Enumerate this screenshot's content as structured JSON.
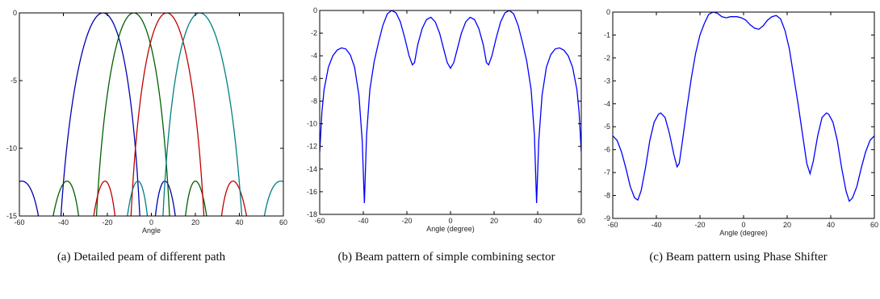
{
  "chart_data": [
    {
      "type": "line",
      "title": "",
      "xlabel": "Angle",
      "ylabel": "",
      "xlim": [
        -60,
        60
      ],
      "ylim": [
        -15,
        0
      ],
      "xticks": [
        -60,
        -40,
        -20,
        0,
        20,
        40,
        60
      ],
      "yticks": [
        -15,
        -10,
        -5,
        0
      ],
      "grid": false,
      "series": [
        {
          "color": "#0000b0",
          "steer": -22
        },
        {
          "color": "#006000",
          "steer": -8
        },
        {
          "color": "#c00000",
          "steer": 7
        },
        {
          "color": "#008080",
          "steer": 22
        }
      ]
    },
    {
      "type": "line",
      "title": "",
      "xlabel": "Angle (degree)",
      "ylabel": "",
      "xlim": [
        -60,
        60
      ],
      "ylim": [
        -18,
        0
      ],
      "xticks": [
        -60,
        -40,
        -20,
        0,
        20,
        40,
        60
      ],
      "yticks": [
        -18,
        -16,
        -14,
        -12,
        -10,
        -8,
        -6,
        -4,
        -2,
        0
      ],
      "grid": false,
      "series": [
        {
          "color": "#0000ff",
          "points": [
            [
              -60,
              -12.5
            ],
            [
              -59,
              -9
            ],
            [
              -58,
              -7
            ],
            [
              -56,
              -5
            ],
            [
              -54,
              -4
            ],
            [
              -52,
              -3.5
            ],
            [
              -50,
              -3.3
            ],
            [
              -48,
              -3.4
            ],
            [
              -46,
              -3.9
            ],
            [
              -44,
              -5
            ],
            [
              -42,
              -7.5
            ],
            [
              -40.5,
              -11.5
            ],
            [
              -39.5,
              -17
            ],
            [
              -38.5,
              -11
            ],
            [
              -37,
              -7
            ],
            [
              -35,
              -4.5
            ],
            [
              -33,
              -2.8
            ],
            [
              -31,
              -1.3
            ],
            [
              -29,
              -0.3
            ],
            [
              -27,
              0
            ],
            [
              -25,
              -0.2
            ],
            [
              -23,
              -1
            ],
            [
              -21,
              -2.4
            ],
            [
              -19,
              -4
            ],
            [
              -17.5,
              -4.8
            ],
            [
              -16.5,
              -4.6
            ],
            [
              -15,
              -3
            ],
            [
              -13,
              -1.6
            ],
            [
              -11,
              -0.8
            ],
            [
              -9,
              -0.6
            ],
            [
              -7,
              -1
            ],
            [
              -5,
              -2
            ],
            [
              -3,
              -3.5
            ],
            [
              -1.5,
              -4.6
            ],
            [
              0,
              -5.1
            ],
            [
              1.5,
              -4.6
            ],
            [
              3,
              -3.5
            ],
            [
              5,
              -2
            ],
            [
              7,
              -1
            ],
            [
              9,
              -0.6
            ],
            [
              11,
              -0.8
            ],
            [
              13,
              -1.6
            ],
            [
              15,
              -3
            ],
            [
              16.5,
              -4.6
            ],
            [
              17.5,
              -4.8
            ],
            [
              19,
              -4
            ],
            [
              21,
              -2.4
            ],
            [
              23,
              -1
            ],
            [
              25,
              -0.2
            ],
            [
              27,
              0
            ],
            [
              29,
              -0.3
            ],
            [
              31,
              -1.3
            ],
            [
              33,
              -2.8
            ],
            [
              35,
              -4.5
            ],
            [
              37,
              -7
            ],
            [
              38.5,
              -11
            ],
            [
              39.5,
              -17
            ],
            [
              40.5,
              -11.5
            ],
            [
              42,
              -7.5
            ],
            [
              44,
              -5
            ],
            [
              46,
              -3.9
            ],
            [
              48,
              -3.4
            ],
            [
              50,
              -3.3
            ],
            [
              52,
              -3.5
            ],
            [
              54,
              -4
            ],
            [
              56,
              -5
            ],
            [
              58,
              -7
            ],
            [
              59,
              -9
            ],
            [
              60,
              -12.5
            ]
          ]
        }
      ]
    },
    {
      "type": "line",
      "title": "",
      "xlabel": "Angle (degree)",
      "ylabel": "",
      "xlim": [
        -60,
        60
      ],
      "ylim": [
        -9,
        0
      ],
      "xticks": [
        -60,
        -40,
        -20,
        0,
        20,
        40,
        60
      ],
      "yticks": [
        -9,
        -8,
        -7,
        -6,
        -5,
        -4,
        -3,
        -2,
        -1,
        0
      ],
      "grid": false,
      "series": [
        {
          "color": "#0000ff",
          "points": [
            [
              -60,
              -5.4
            ],
            [
              -58,
              -5.6
            ],
            [
              -56,
              -6.1
            ],
            [
              -54,
              -6.8
            ],
            [
              -52,
              -7.6
            ],
            [
              -50,
              -8.1
            ],
            [
              -48.5,
              -8.2
            ],
            [
              -47,
              -7.8
            ],
            [
              -45,
              -6.8
            ],
            [
              -43,
              -5.6
            ],
            [
              -41,
              -4.8
            ],
            [
              -39,
              -4.45
            ],
            [
              -38,
              -4.4
            ],
            [
              -36,
              -4.6
            ],
            [
              -34,
              -5.3
            ],
            [
              -32,
              -6.2
            ],
            [
              -30.5,
              -6.75
            ],
            [
              -29.5,
              -6.6
            ],
            [
              -28,
              -5.6
            ],
            [
              -26,
              -4.2
            ],
            [
              -24,
              -2.9
            ],
            [
              -22,
              -1.8
            ],
            [
              -20,
              -1
            ],
            [
              -18,
              -0.5
            ],
            [
              -16,
              -0.1
            ],
            [
              -14,
              0
            ],
            [
              -12,
              -0.05
            ],
            [
              -10,
              -0.2
            ],
            [
              -8,
              -0.25
            ],
            [
              -6,
              -0.2
            ],
            [
              -3,
              -0.2
            ],
            [
              -1,
              -0.25
            ],
            [
              1,
              -0.35
            ],
            [
              3,
              -0.55
            ],
            [
              5,
              -0.7
            ],
            [
              7,
              -0.75
            ],
            [
              9,
              -0.6
            ],
            [
              11,
              -0.35
            ],
            [
              13,
              -0.2
            ],
            [
              15,
              -0.15
            ],
            [
              17,
              -0.3
            ],
            [
              19,
              -0.8
            ],
            [
              21,
              -1.6
            ],
            [
              23,
              -2.8
            ],
            [
              25,
              -4
            ],
            [
              27,
              -5.3
            ],
            [
              29,
              -6.6
            ],
            [
              30.5,
              -7.05
            ],
            [
              32,
              -6.5
            ],
            [
              34,
              -5.4
            ],
            [
              36,
              -4.6
            ],
            [
              38,
              -4.4
            ],
            [
              39,
              -4.45
            ],
            [
              41,
              -4.8
            ],
            [
              43,
              -5.6
            ],
            [
              45,
              -6.8
            ],
            [
              47,
              -7.8
            ],
            [
              48.5,
              -8.25
            ],
            [
              50,
              -8.1
            ],
            [
              52,
              -7.6
            ],
            [
              54,
              -6.8
            ],
            [
              56,
              -6.1
            ],
            [
              58,
              -5.6
            ],
            [
              60,
              -5.4
            ]
          ]
        }
      ]
    }
  ],
  "captions": {
    "a": "(a) Detailed peam of different path",
    "b": "(b) Beam pattern of simple combining sector",
    "c": "(c) Beam pattern using Phase Shifter"
  }
}
